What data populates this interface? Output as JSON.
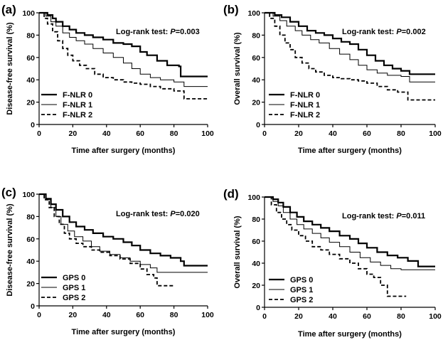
{
  "figure": {
    "panels": [
      {
        "label": "(a)",
        "ylabel": "Disease-free survival (%)",
        "xlabel": "Time after surgery (months)",
        "stat_prefix": "Log-rank test: ",
        "stat_p": "P",
        "stat_value": "=0.003"
      },
      {
        "label": "(b)",
        "ylabel": "Overall survival (%)",
        "xlabel": "Time after surgery (months)",
        "stat_prefix": "Log-rank test: ",
        "stat_p": "P",
        "stat_value": "=0.002"
      },
      {
        "label": "(c)",
        "ylabel": "Disease-free survival (%)",
        "xlabel": "Time after surgery (months)",
        "stat_prefix": "Log-rank test: ",
        "stat_p": "P",
        "stat_value": "=0.020"
      },
      {
        "label": "(d)",
        "ylabel": "Overall survival (%)",
        "xlabel": "Time after surgery (months)",
        "stat_prefix": "Log-rank test: ",
        "stat_p": "P",
        "stat_value": "=0.011"
      }
    ]
  },
  "chart_data": [
    {
      "type": "line",
      "step": true,
      "panel_label": "(a)",
      "title": "",
      "xlabel": "Time after surgery (months)",
      "ylabel": "Disease-free survival (%)",
      "xlim": [
        0,
        100
      ],
      "ylim": [
        0,
        100
      ],
      "xticks": [
        0,
        20,
        40,
        60,
        80,
        100
      ],
      "yticks": [
        0,
        20,
        40,
        60,
        80,
        100
      ],
      "annotation": "Log-rank test: P=0.003",
      "legend_position": "lower-left",
      "series": [
        {
          "name": "F-NLR 0",
          "style": "thick-solid",
          "x": [
            0,
            5,
            8,
            10,
            14,
            18,
            22,
            27,
            32,
            38,
            44,
            50,
            55,
            60,
            64,
            70,
            76,
            83,
            84,
            100
          ],
          "y": [
            100,
            98,
            95,
            92,
            88,
            85,
            82,
            80,
            78,
            76,
            73,
            72,
            70,
            65,
            62,
            57,
            53,
            52,
            43,
            43
          ]
        },
        {
          "name": "F-NLR 1",
          "style": "thin-solid",
          "x": [
            0,
            4,
            7,
            10,
            14,
            18,
            22,
            27,
            32,
            38,
            44,
            50,
            55,
            60,
            66,
            72,
            80,
            86,
            100
          ],
          "y": [
            100,
            97,
            92,
            88,
            82,
            78,
            75,
            72,
            68,
            64,
            60,
            55,
            50,
            45,
            42,
            40,
            38,
            34,
            34
          ]
        },
        {
          "name": "F-NLR 2",
          "style": "dashed",
          "x": [
            0,
            3,
            5,
            8,
            11,
            14,
            17,
            20,
            24,
            28,
            33,
            38,
            44,
            50,
            55,
            60,
            66,
            72,
            80,
            86,
            100
          ],
          "y": [
            100,
            95,
            90,
            83,
            75,
            68,
            62,
            57,
            53,
            50,
            45,
            42,
            40,
            38,
            37,
            36,
            34,
            32,
            30,
            23,
            23
          ]
        }
      ]
    },
    {
      "type": "line",
      "step": true,
      "panel_label": "(b)",
      "title": "",
      "xlabel": "Time after surgery (months)",
      "ylabel": "Overall survival (%)",
      "xlim": [
        0,
        100
      ],
      "ylim": [
        0,
        100
      ],
      "xticks": [
        0,
        20,
        40,
        60,
        80,
        100
      ],
      "yticks": [
        0,
        20,
        40,
        60,
        80,
        100
      ],
      "annotation": "Log-rank test: P=0.002",
      "legend_position": "lower-left",
      "series": [
        {
          "name": "F-NLR 0",
          "style": "thick-solid",
          "x": [
            0,
            6,
            10,
            15,
            20,
            25,
            30,
            35,
            40,
            45,
            50,
            55,
            60,
            65,
            70,
            75,
            80,
            85,
            100
          ],
          "y": [
            100,
            98,
            96,
            92,
            88,
            84,
            82,
            80,
            77,
            74,
            72,
            67,
            62,
            57,
            53,
            50,
            48,
            45,
            45
          ]
        },
        {
          "name": "F-NLR 1",
          "style": "thin-solid",
          "x": [
            0,
            5,
            9,
            13,
            18,
            22,
            27,
            32,
            38,
            44,
            50,
            55,
            60,
            66,
            72,
            80,
            85,
            100
          ],
          "y": [
            100,
            97,
            93,
            88,
            84,
            80,
            76,
            73,
            68,
            63,
            58,
            53,
            49,
            46,
            44,
            43,
            38,
            38
          ]
        },
        {
          "name": "F-NLR 2",
          "style": "dashed",
          "x": [
            0,
            3,
            6,
            9,
            12,
            15,
            18,
            22,
            26,
            30,
            35,
            40,
            45,
            50,
            55,
            60,
            66,
            72,
            78,
            84,
            100
          ],
          "y": [
            100,
            95,
            88,
            80,
            73,
            67,
            60,
            55,
            50,
            47,
            44,
            42,
            41,
            40,
            39,
            37,
            34,
            31,
            29,
            22,
            22
          ]
        }
      ]
    },
    {
      "type": "line",
      "step": true,
      "panel_label": "(c)",
      "title": "",
      "xlabel": "Time after surgery (months)",
      "ylabel": "Disease-free survival (%)",
      "xlim": [
        0,
        100
      ],
      "ylim": [
        0,
        100
      ],
      "xticks": [
        0,
        20,
        40,
        60,
        80,
        100
      ],
      "yticks": [
        0,
        20,
        40,
        60,
        80,
        100
      ],
      "annotation": "Log-rank test: P=0.020",
      "legend_position": "lower-left",
      "series": [
        {
          "name": "GPS 0",
          "style": "thick-solid",
          "x": [
            0,
            4,
            7,
            10,
            14,
            18,
            22,
            27,
            32,
            38,
            44,
            50,
            55,
            60,
            66,
            72,
            78,
            84,
            86,
            100
          ],
          "y": [
            100,
            96,
            91,
            86,
            80,
            75,
            71,
            68,
            65,
            62,
            60,
            57,
            54,
            50,
            47,
            45,
            43,
            40,
            36,
            36
          ]
        },
        {
          "name": "GPS 1",
          "style": "thin-solid",
          "x": [
            0,
            4,
            7,
            10,
            13,
            17,
            21,
            26,
            31,
            36,
            42,
            48,
            54,
            60,
            66,
            70,
            100
          ],
          "y": [
            100,
            95,
            88,
            80,
            73,
            67,
            62,
            58,
            53,
            49,
            46,
            43,
            40,
            37,
            34,
            30,
            30
          ]
        },
        {
          "name": "GPS 2",
          "style": "dashed",
          "x": [
            0,
            3,
            6,
            9,
            12,
            15,
            18,
            22,
            26,
            31,
            36,
            42,
            48,
            54,
            60,
            64,
            68,
            70,
            80
          ],
          "y": [
            100,
            95,
            88,
            80,
            73,
            65,
            60,
            56,
            53,
            50,
            48,
            45,
            42,
            38,
            33,
            28,
            25,
            18,
            18
          ]
        }
      ]
    },
    {
      "type": "line",
      "step": true,
      "panel_label": "(d)",
      "title": "",
      "xlabel": "Time after surgery (months)",
      "ylabel": "Overall survival (%)",
      "xlim": [
        0,
        100
      ],
      "ylim": [
        0,
        100
      ],
      "xticks": [
        0,
        20,
        40,
        60,
        80,
        100
      ],
      "yticks": [
        0,
        20,
        40,
        60,
        80,
        100
      ],
      "annotation": "Log-rank test: P=0.011",
      "legend_position": "lower-left",
      "series": [
        {
          "name": "GPS 0",
          "style": "thick-solid",
          "x": [
            0,
            5,
            8,
            11,
            15,
            19,
            23,
            28,
            33,
            38,
            44,
            50,
            55,
            60,
            66,
            72,
            78,
            84,
            90,
            100
          ],
          "y": [
            100,
            98,
            95,
            91,
            86,
            82,
            78,
            75,
            72,
            69,
            65,
            62,
            58,
            54,
            50,
            47,
            45,
            42,
            37,
            37
          ]
        },
        {
          "name": "GPS 1",
          "style": "thin-solid",
          "x": [
            0,
            5,
            8,
            11,
            15,
            19,
            23,
            28,
            33,
            38,
            44,
            50,
            56,
            62,
            68,
            74,
            80,
            100
          ],
          "y": [
            100,
            96,
            92,
            86,
            80,
            75,
            71,
            67,
            63,
            59,
            55,
            50,
            45,
            41,
            38,
            35,
            34,
            34
          ]
        },
        {
          "name": "GPS 2",
          "style": "dashed",
          "x": [
            0,
            4,
            7,
            10,
            13,
            16,
            20,
            24,
            28,
            33,
            38,
            44,
            50,
            55,
            60,
            64,
            68,
            72,
            78,
            83
          ],
          "y": [
            100,
            93,
            86,
            80,
            75,
            70,
            65,
            60,
            55,
            52,
            48,
            44,
            40,
            35,
            30,
            27,
            20,
            10,
            10,
            10
          ]
        }
      ]
    }
  ]
}
